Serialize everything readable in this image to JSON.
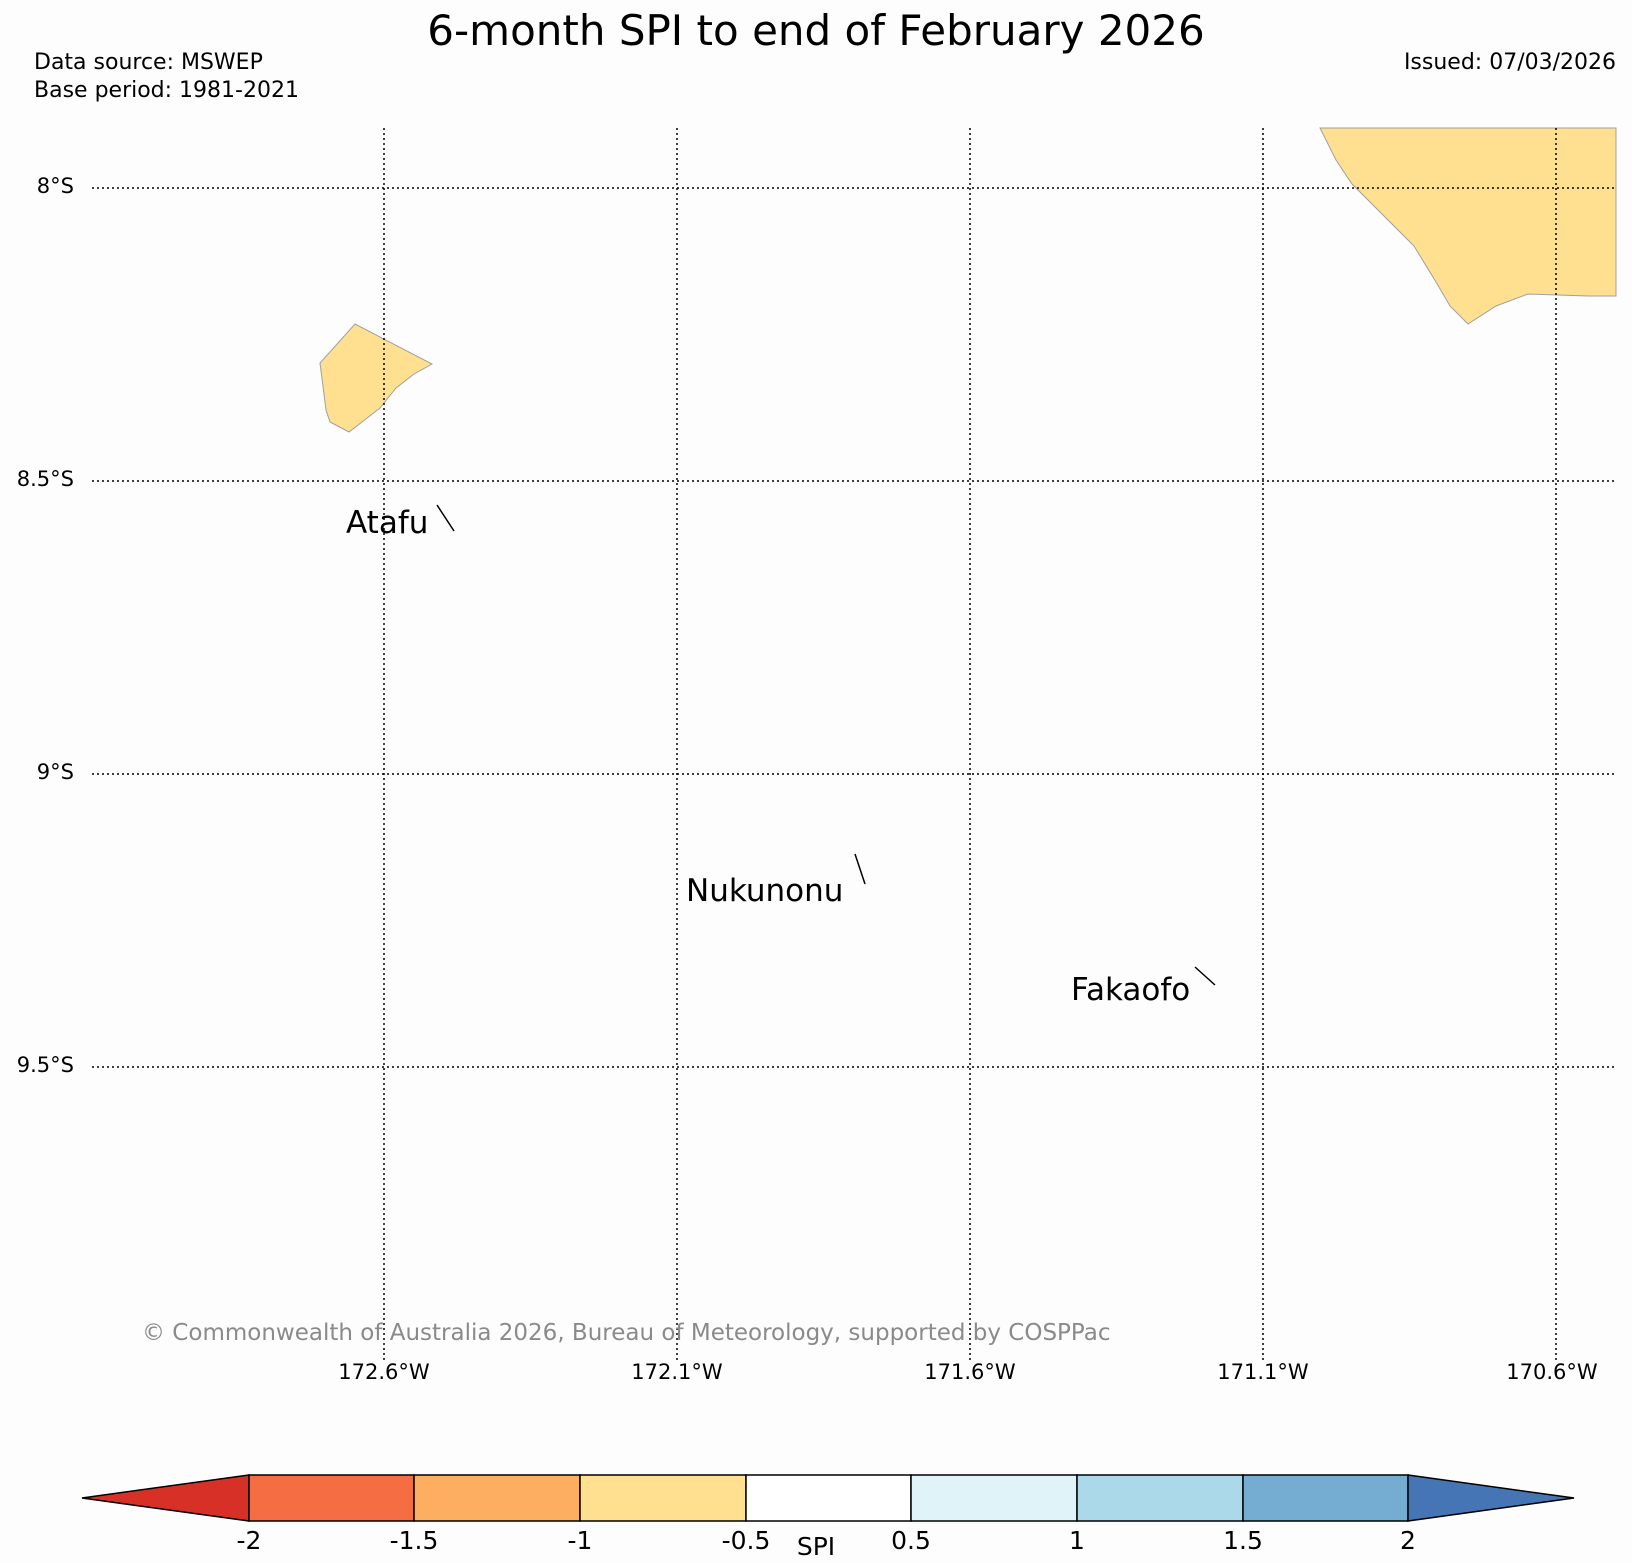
{
  "title": "6-month SPI to end of February 2026",
  "data_source": "Data source: MSWEP",
  "base_period": "Base period: 1981-2021",
  "issued": "Issued: 07/03/2026",
  "lat_labels": [
    "8°S",
    "8.5°S",
    "9°S",
    "9.5°S"
  ],
  "lon_labels": [
    "172.6°W",
    "172.1°W",
    "171.6°W",
    "171.1°W",
    "170.6°W"
  ],
  "places": [
    {
      "name": "Atafu"
    },
    {
      "name": "Nukunonu"
    },
    {
      "name": "Fakaofo"
    }
  ],
  "copyright": "© Commonwealth of Australia 2026, Bureau of Meteorology, supported by COSPPac",
  "colorbar": {
    "label": "SPI",
    "ticks": [
      "-2",
      "-1.5",
      "-1",
      "-0.5",
      "0.5",
      "1",
      "1.5",
      "2"
    ],
    "colors": [
      "#d73027",
      "#f46d43",
      "#fdae61",
      "#fee090",
      "#ffffff",
      "#e0f3f8",
      "#abd9e9",
      "#74add1",
      "#4575b4"
    ]
  },
  "shaded_region_color": "#fee090"
}
